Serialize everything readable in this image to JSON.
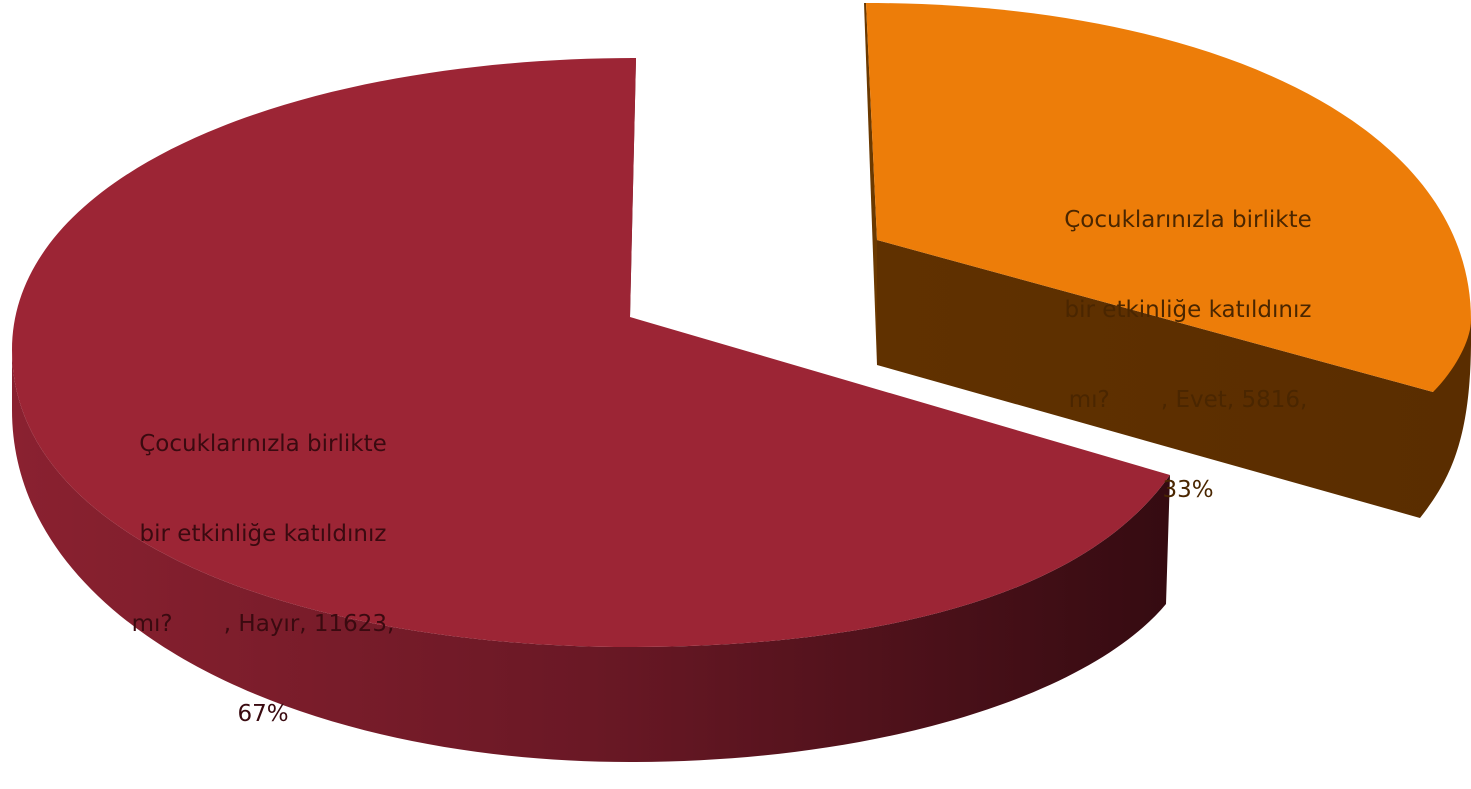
{
  "chart_data": {
    "type": "pie",
    "style": "3d-exploded",
    "title": "",
    "slices": [
      {
        "category": "Çocuklarınızla birlikte bir etkinliğe katıldınız mı?",
        "name": "Evet",
        "value": 5816,
        "percent": 33,
        "label_lines": [
          "Çocuklarınızla birlikte",
          "bir etkinliğe katıldınız",
          "mı?       , Evet, 5816,",
          "33%"
        ],
        "color": "#ed7d09",
        "side_color": "#5e3000",
        "exploded": true
      },
      {
        "category": "Çocuklarınızla birlikte bir etkinliğe katıldınız mı?",
        "name": "Hayır",
        "value": 11623,
        "percent": 67,
        "label_lines": [
          "Çocuklarınızla birlikte",
          "bir etkinliğe katıldınız",
          "mı?       , Hayır, 11623,",
          "67%"
        ],
        "color": "#9c2535",
        "side_color": "#6b1a26",
        "exploded": false
      }
    ],
    "legend": "none"
  }
}
